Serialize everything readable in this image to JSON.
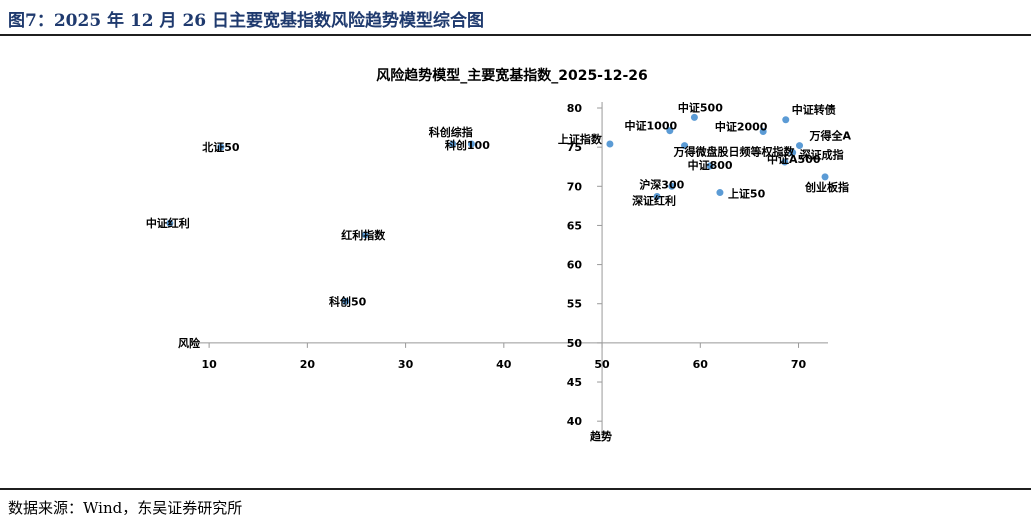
{
  "figure": {
    "title": "图7：2025 年 12 月 26 日主要宽基指数风险趋势模型综合图",
    "source": "数据来源：Wind，东吴证券研究所"
  },
  "colors": {
    "point": "#5b9bd5",
    "axis": "#999999",
    "text": "#000000"
  },
  "chart_data": {
    "type": "scatter",
    "title": "风险趋势模型_主要宽基指数_2025-12-26",
    "xlabel": "风险",
    "ylabel": "趋势",
    "xlim": [
      5,
      73
    ],
    "ylim": [
      39,
      80
    ],
    "x_ticks": [
      10,
      20,
      30,
      40,
      50,
      60,
      70
    ],
    "y_ticks": [
      40,
      45,
      50,
      55,
      60,
      65,
      70,
      75,
      80
    ],
    "axis_cross": {
      "x": 50,
      "y": 50
    },
    "grid": false,
    "points": [
      {
        "label": "北证50",
        "x": 11.2,
        "y": 75.0
      },
      {
        "label": "中证红利",
        "x": 6.0,
        "y": 65.3
      },
      {
        "label": "红利指数",
        "x": 25.9,
        "y": 63.8
      },
      {
        "label": "科创50",
        "x": 23.9,
        "y": 55.3
      },
      {
        "label": "科创综指",
        "x": 34.8,
        "y": 75.4
      },
      {
        "label": "科创100",
        "x": 36.7,
        "y": 75.4
      },
      {
        "label": "上证指数",
        "x": 50.8,
        "y": 75.4
      },
      {
        "label": "中证1000",
        "x": 56.9,
        "y": 77.1
      },
      {
        "label": "中证500",
        "x": 59.4,
        "y": 78.8
      },
      {
        "label": "万得微盘股日频等权指数",
        "x": 58.4,
        "y": 75.2
      },
      {
        "label": "中证800",
        "x": 61.0,
        "y": 72.6
      },
      {
        "label": "沪深300",
        "x": 57.1,
        "y": 70.0
      },
      {
        "label": "深证红利",
        "x": 55.6,
        "y": 68.7
      },
      {
        "label": "上证50",
        "x": 62.0,
        "y": 69.2
      },
      {
        "label": "中证2000",
        "x": 66.4,
        "y": 77.0
      },
      {
        "label": "中证转债",
        "x": 68.7,
        "y": 78.5
      },
      {
        "label": "万得全A",
        "x": 70.1,
        "y": 75.2
      },
      {
        "label": "深证成指",
        "x": 69.4,
        "y": 74.3
      },
      {
        "label": "中证A500",
        "x": 68.6,
        "y": 73.1
      },
      {
        "label": "创业板指",
        "x": 72.7,
        "y": 71.2
      }
    ]
  }
}
